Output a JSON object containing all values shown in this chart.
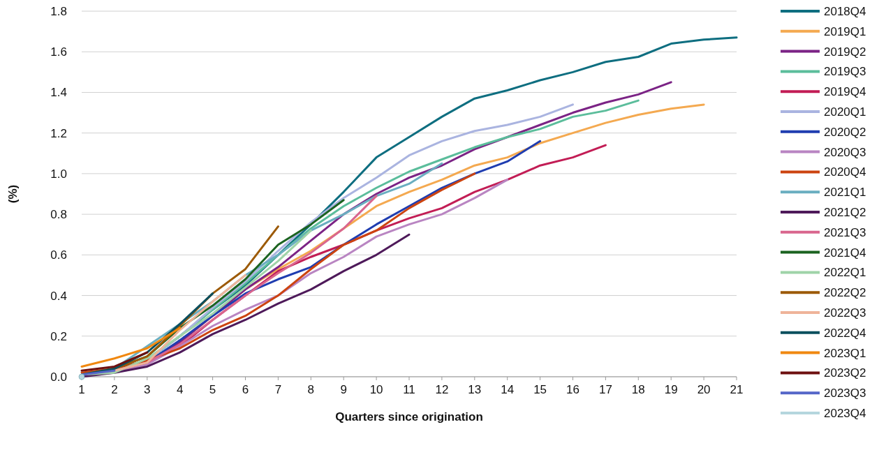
{
  "chart_data": {
    "type": "line",
    "xlabel": "Quarters since origination",
    "ylabel": "(%)",
    "x": [
      1,
      2,
      3,
      4,
      5,
      6,
      7,
      8,
      9,
      10,
      11,
      12,
      13,
      14,
      15,
      16,
      17,
      18,
      19,
      20,
      21
    ],
    "xlim": [
      1,
      21
    ],
    "xticks": [
      1,
      2,
      3,
      4,
      5,
      6,
      7,
      8,
      9,
      10,
      11,
      12,
      13,
      14,
      15,
      16,
      17,
      18,
      19,
      20,
      21
    ],
    "ylim": [
      0,
      1.8
    ],
    "yticks": [
      {
        "value": 0,
        "label": "0.0"
      },
      {
        "value": 0.2,
        "label": "0.2"
      },
      {
        "value": 0.4,
        "label": "0.4"
      },
      {
        "value": 0.6,
        "label": "0.6"
      },
      {
        "value": 0.8,
        "label": "0.8"
      },
      {
        "value": 1,
        "label": "1.0"
      },
      {
        "value": 1.2,
        "label": "1.2"
      },
      {
        "value": 1.4,
        "label": "1.4"
      },
      {
        "value": 1.6,
        "label": "1.6"
      },
      {
        "value": 1.8,
        "label": "1.8"
      }
    ],
    "grid": "y",
    "legend": "right",
    "marker": "none",
    "line_style": "solid",
    "series": [
      {
        "name": "2018Q4",
        "color": "#0e6e80",
        "values": [
          0.01,
          0.03,
          0.08,
          0.2,
          0.33,
          0.45,
          0.6,
          0.75,
          0.91,
          1.08,
          1.18,
          1.28,
          1.37,
          1.41,
          1.46,
          1.5,
          1.55,
          1.575,
          1.64,
          1.66,
          1.67
        ]
      },
      {
        "name": "2019Q1",
        "color": "#f4a950",
        "values": [
          0.01,
          0.03,
          0.07,
          0.17,
          0.3,
          0.43,
          0.53,
          0.62,
          0.73,
          0.84,
          0.91,
          0.97,
          1.04,
          1.08,
          1.15,
          1.2,
          1.25,
          1.29,
          1.32,
          1.34,
          null
        ]
      },
      {
        "name": "2019Q2",
        "color": "#7b2385",
        "values": [
          0.01,
          0.03,
          0.07,
          0.17,
          0.3,
          0.43,
          0.54,
          0.67,
          0.8,
          0.9,
          0.98,
          1.04,
          1.12,
          1.18,
          1.24,
          1.3,
          1.35,
          1.39,
          1.45,
          null,
          null
        ]
      },
      {
        "name": "2019Q3",
        "color": "#5bbd9b",
        "values": [
          0.01,
          0.03,
          0.08,
          0.2,
          0.33,
          0.46,
          0.6,
          0.73,
          0.84,
          0.93,
          1.01,
          1.07,
          1.13,
          1.18,
          1.22,
          1.28,
          1.31,
          1.36,
          null,
          null,
          null
        ]
      },
      {
        "name": "2019Q4",
        "color": "#c21d55",
        "values": [
          0.01,
          0.03,
          0.07,
          0.15,
          0.28,
          0.4,
          0.52,
          0.59,
          0.65,
          0.72,
          0.78,
          0.83,
          0.91,
          0.97,
          1.04,
          1.08,
          1.14,
          null,
          null,
          null,
          null
        ]
      },
      {
        "name": "2020Q1",
        "color": "#aab4e0",
        "values": [
          0.01,
          0.03,
          0.08,
          0.2,
          0.34,
          0.47,
          0.62,
          0.76,
          0.88,
          0.98,
          1.09,
          1.16,
          1.21,
          1.24,
          1.28,
          1.34,
          null,
          null,
          null,
          null,
          null
        ]
      },
      {
        "name": "2020Q2",
        "color": "#1f3db0",
        "values": [
          0.01,
          0.03,
          0.07,
          0.18,
          0.3,
          0.41,
          0.48,
          0.54,
          0.65,
          0.75,
          0.84,
          0.93,
          1.0,
          1.06,
          1.16,
          null,
          null,
          null,
          null,
          null,
          null
        ]
      },
      {
        "name": "2020Q3",
        "color": "#b985c2",
        "values": [
          0.01,
          0.02,
          0.06,
          0.15,
          0.25,
          0.33,
          0.4,
          0.51,
          0.59,
          0.69,
          0.75,
          0.8,
          0.88,
          0.97,
          null,
          null,
          null,
          null,
          null,
          null,
          null
        ]
      },
      {
        "name": "2020Q4",
        "color": "#cc4410",
        "values": [
          0.02,
          0.04,
          0.08,
          0.14,
          0.23,
          0.3,
          0.4,
          0.53,
          0.65,
          0.72,
          0.83,
          0.92,
          1.0,
          null,
          null,
          null,
          null,
          null,
          null,
          null,
          null
        ]
      },
      {
        "name": "2021Q1",
        "color": "#6aaec0",
        "values": [
          0.01,
          0.04,
          0.15,
          0.26,
          0.37,
          0.5,
          0.6,
          0.72,
          0.8,
          0.89,
          0.95,
          1.05,
          null,
          null,
          null,
          null,
          null,
          null,
          null,
          null,
          null
        ]
      },
      {
        "name": "2021Q2",
        "color": "#4e1a5a",
        "values": [
          0,
          0.02,
          0.05,
          0.12,
          0.21,
          0.28,
          0.36,
          0.43,
          0.52,
          0.6,
          0.7,
          null,
          null,
          null,
          null,
          null,
          null,
          null,
          null,
          null,
          null
        ]
      },
      {
        "name": "2021Q3",
        "color": "#d9668e",
        "values": [
          0.01,
          0.03,
          0.07,
          0.16,
          0.28,
          0.4,
          0.51,
          0.61,
          0.73,
          0.89,
          null,
          null,
          null,
          null,
          null,
          null,
          null,
          null,
          null,
          null,
          null
        ]
      },
      {
        "name": "2021Q4",
        "color": "#1b6320",
        "values": [
          0.01,
          0.04,
          0.1,
          0.24,
          0.35,
          0.48,
          0.65,
          0.75,
          0.87,
          null,
          null,
          null,
          null,
          null,
          null,
          null,
          null,
          null,
          null,
          null,
          null
        ]
      },
      {
        "name": "2022Q1",
        "color": "#9fd3a8",
        "values": [
          0.01,
          0.02,
          0.09,
          0.2,
          0.31,
          0.44,
          0.57,
          0.72,
          null,
          null,
          null,
          null,
          null,
          null,
          null,
          null,
          null,
          null,
          null,
          null,
          null
        ]
      },
      {
        "name": "2022Q2",
        "color": "#9c5a06",
        "values": [
          0.01,
          0.04,
          0.1,
          0.25,
          0.41,
          0.53,
          0.74,
          null,
          null,
          null,
          null,
          null,
          null,
          null,
          null,
          null,
          null,
          null,
          null,
          null,
          null
        ]
      },
      {
        "name": "2022Q3",
        "color": "#efb49a",
        "values": [
          0.01,
          0.03,
          0.07,
          0.23,
          0.37,
          0.5,
          null,
          null,
          null,
          null,
          null,
          null,
          null,
          null,
          null,
          null,
          null,
          null,
          null,
          null,
          null
        ]
      },
      {
        "name": "2022Q4",
        "color": "#0b4f5e",
        "values": [
          0.01,
          0.04,
          0.12,
          0.26,
          0.41,
          null,
          null,
          null,
          null,
          null,
          null,
          null,
          null,
          null,
          null,
          null,
          null,
          null,
          null,
          null,
          null
        ]
      },
      {
        "name": "2023Q1",
        "color": "#f08810",
        "values": [
          0.05,
          0.09,
          0.14,
          0.24,
          null,
          null,
          null,
          null,
          null,
          null,
          null,
          null,
          null,
          null,
          null,
          null,
          null,
          null,
          null,
          null,
          null
        ]
      },
      {
        "name": "2023Q2",
        "color": "#6e1010",
        "values": [
          0.03,
          0.05,
          0.12,
          null,
          null,
          null,
          null,
          null,
          null,
          null,
          null,
          null,
          null,
          null,
          null,
          null,
          null,
          null,
          null,
          null,
          null
        ]
      },
      {
        "name": "2023Q3",
        "color": "#5466c8",
        "values": [
          0.01,
          0.03,
          null,
          null,
          null,
          null,
          null,
          null,
          null,
          null,
          null,
          null,
          null,
          null,
          null,
          null,
          null,
          null,
          null,
          null,
          null
        ]
      },
      {
        "name": "2023Q4",
        "color": "#b5d6de",
        "marker": "circle",
        "values": [
          0,
          null,
          null,
          null,
          null,
          null,
          null,
          null,
          null,
          null,
          null,
          null,
          null,
          null,
          null,
          null,
          null,
          null,
          null,
          null,
          null
        ]
      }
    ]
  }
}
